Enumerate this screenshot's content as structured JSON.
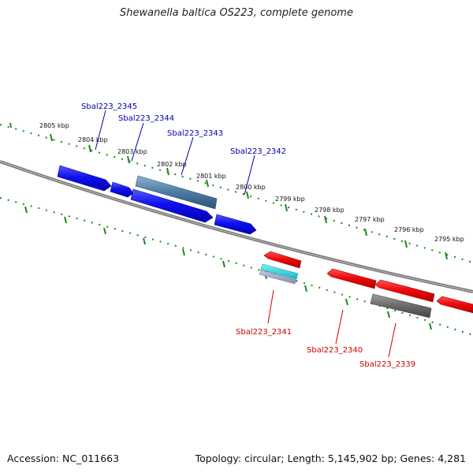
{
  "title": "Shewanella baltica OS223, complete genome",
  "footer": {
    "accession": "Accession: NC_011663",
    "topology": "Topology: circular; Length: 5,145,902 bp; Genes: 4,281"
  },
  "colors": {
    "forward_gene": "#1a1ae6",
    "reverse_gene": "#e61a1a",
    "forward_label": "#0000aa",
    "reverse_label": "#cc0000",
    "rna_gene": "#5b85a8",
    "tick": "#2a8c2a",
    "backbone": "#888888"
  },
  "scale": {
    "ticks": [
      "2805 kbp",
      "2804 kbp",
      "2803 kbp",
      "2802 kbp",
      "2801 kbp",
      "2800 kbp",
      "2799 kbp",
      "2798 kbp",
      "2797 kbp",
      "2796 kbp",
      "2795 kbp"
    ]
  },
  "genes": {
    "forward_labels": [
      "Sbal223_2345",
      "Sbal223_2344",
      "Sbal223_2343",
      "Sbal223_2342"
    ],
    "reverse_labels": [
      "Sbal223_2341",
      "Sbal223_2340",
      "Sbal223_2339"
    ]
  }
}
